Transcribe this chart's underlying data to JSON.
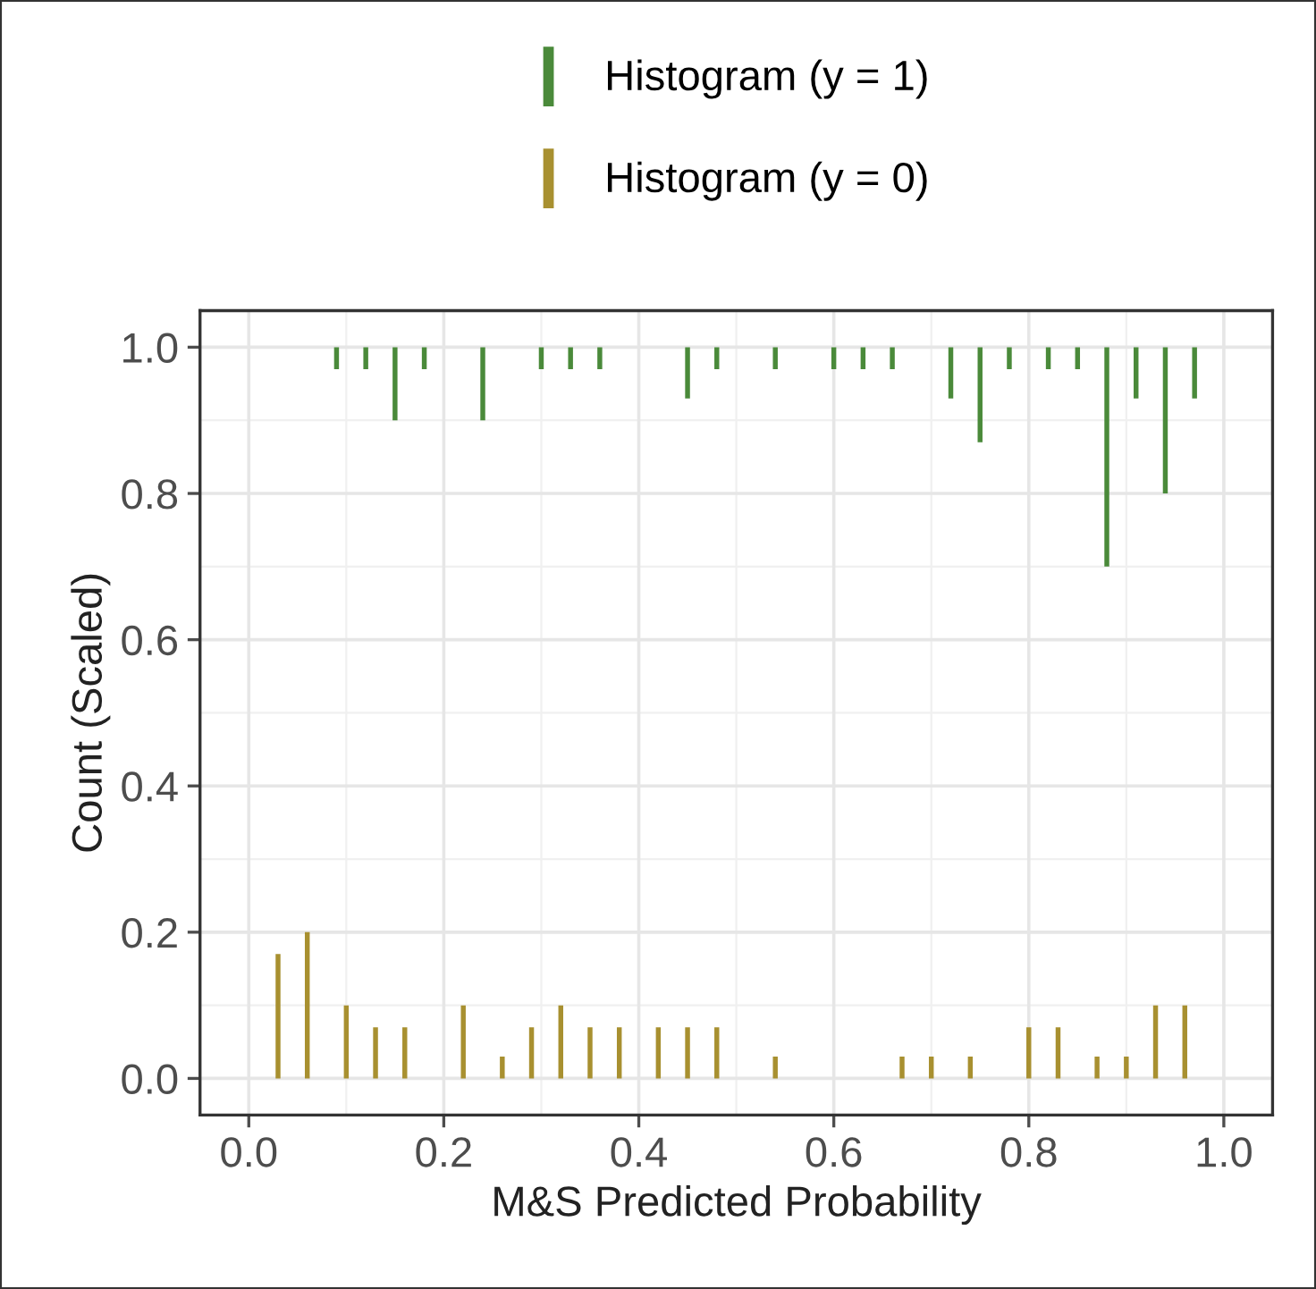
{
  "chart_data": {
    "type": "bar",
    "xlabel": "M&S Predicted Probability",
    "ylabel": "Count (Scaled)",
    "xlim": [
      -0.05,
      1.05
    ],
    "xticks": [
      {
        "value": 0,
        "label": "0.0"
      },
      0.2,
      0.4,
      0.6,
      0.8,
      {
        "value": 1,
        "label": "1.0"
      }
    ],
    "ylim": [
      -0.05,
      1.05
    ],
    "yticks": [
      {
        "value": 0,
        "label": "0.0"
      },
      0.2,
      0.4,
      0.6,
      0.8,
      {
        "value": 1,
        "label": "1.0"
      }
    ],
    "grid": true,
    "legend": "top",
    "series": [
      {
        "name": "Histogram (y = 1)",
        "color": "#4a8a3a",
        "x": [
          0.09,
          0.12,
          0.15,
          0.18,
          0.24,
          0.3,
          0.33,
          0.36,
          0.45,
          0.48,
          0.54,
          0.6,
          0.63,
          0.66,
          0.72,
          0.75,
          0.78,
          0.82,
          0.85,
          0.88,
          0.91,
          0.94,
          0.97
        ],
        "base": [
          1,
          1,
          1,
          1,
          1,
          1,
          1,
          1,
          1,
          1,
          1,
          1,
          1,
          1,
          1,
          1,
          1,
          1,
          1,
          1,
          1,
          1,
          1
        ],
        "values": [
          -0.03,
          -0.03,
          -0.1,
          -0.03,
          -0.1,
          -0.03,
          -0.03,
          -0.03,
          -0.07,
          -0.03,
          -0.03,
          -0.03,
          -0.03,
          -0.03,
          -0.07,
          -0.13,
          -0.03,
          -0.03,
          -0.03,
          -0.3,
          -0.07,
          -0.2,
          -0.07
        ]
      },
      {
        "name": "Histogram (y = 0)",
        "color": "#a89030",
        "x": [
          0.03,
          0.06,
          0.1,
          0.13,
          0.16,
          0.22,
          0.26,
          0.29,
          0.32,
          0.35,
          0.38,
          0.42,
          0.45,
          0.48,
          0.54,
          0.67,
          0.7,
          0.74,
          0.8,
          0.83,
          0.87,
          0.9,
          0.93,
          0.96
        ],
        "values": [
          0.17,
          0.2,
          0.1,
          0.07,
          0.07,
          0.1,
          0.03,
          0.07,
          0.1,
          0.07,
          0.07,
          0.07,
          0.07,
          0.07,
          0.03,
          0.03,
          0.03,
          0.03,
          0.07,
          0.07,
          0.03,
          0.03,
          0.1,
          0.1
        ]
      }
    ]
  }
}
